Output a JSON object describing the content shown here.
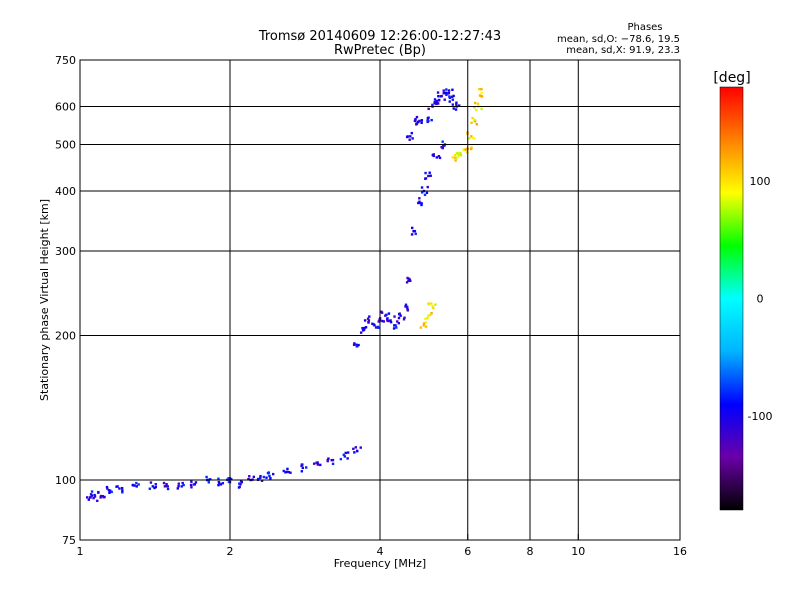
{
  "chart_data": {
    "type": "scatter",
    "title": "Tromsø 20140609 12:26:00-12:27:43",
    "subtitle": "RwPretec (Bp)",
    "xlabel": "Frequency [MHz]",
    "ylabel": "Stationary phase Virtual Height [km]",
    "x_scale": "log",
    "y_scale": "log",
    "xlim": [
      1,
      16
    ],
    "ylim": [
      75,
      750
    ],
    "x_ticks": [
      1,
      2,
      4,
      6,
      8,
      10,
      16
    ],
    "y_ticks": [
      75,
      100,
      200,
      300,
      400,
      500,
      600,
      750
    ],
    "grid": true,
    "stats": {
      "header": "Phases",
      "o_mode": "mean, sd,O: −78.6, 19.5",
      "x_mode": "mean, sd,X:  91.9, 23.3"
    },
    "colorbar": {
      "label": "[deg]",
      "range": [
        -180,
        180
      ],
      "ticks": [
        100,
        0,
        -100
      ],
      "colormap": "rainbow",
      "colors": [
        "#000000",
        "#6a00a8",
        "#0000ff",
        "#00b4ff",
        "#00ffff",
        "#00ff00",
        "#ffff00",
        "#ff8000",
        "#ff0000"
      ]
    },
    "series": [
      {
        "name": "trace-low",
        "phase": -100,
        "points": [
          [
            1.05,
            92
          ],
          [
            1.07,
            93
          ],
          [
            1.1,
            92
          ],
          [
            1.15,
            95
          ],
          [
            1.2,
            96
          ],
          [
            1.3,
            97
          ],
          [
            1.4,
            97
          ],
          [
            1.5,
            97
          ],
          [
            1.6,
            97
          ],
          [
            1.7,
            98
          ],
          [
            1.8,
            100
          ],
          [
            1.9,
            99
          ],
          [
            2.0,
            99
          ],
          [
            2.1,
            98
          ],
          [
            2.2,
            100
          ],
          [
            2.3,
            101
          ],
          [
            2.4,
            102
          ],
          [
            2.6,
            104
          ],
          [
            2.8,
            106
          ],
          [
            3.0,
            108
          ],
          [
            3.2,
            110
          ],
          [
            3.4,
            112
          ],
          [
            3.6,
            115
          ]
        ]
      },
      {
        "name": "trace-mid",
        "phase": -100,
        "points": [
          [
            3.6,
            190
          ],
          [
            3.7,
            205
          ],
          [
            3.8,
            215
          ],
          [
            3.9,
            210
          ],
          [
            4.0,
            215
          ],
          [
            4.1,
            220
          ],
          [
            4.2,
            215
          ],
          [
            4.3,
            210
          ],
          [
            4.4,
            220
          ],
          [
            4.5,
            230
          ],
          [
            4.6,
            260
          ],
          [
            4.7,
            330
          ],
          [
            4.8,
            380
          ],
          [
            4.9,
            400
          ],
          [
            5.0,
            430
          ],
          [
            5.2,
            470
          ],
          [
            5.4,
            500
          ]
        ]
      },
      {
        "name": "trace-high",
        "phase": -100,
        "points": [
          [
            4.6,
            520
          ],
          [
            4.7,
            560
          ],
          [
            4.8,
            560
          ],
          [
            5.0,
            560
          ],
          [
            5.1,
            600
          ],
          [
            5.2,
            610
          ],
          [
            5.3,
            630
          ],
          [
            5.4,
            640
          ],
          [
            5.5,
            640
          ],
          [
            5.6,
            620
          ],
          [
            5.7,
            600
          ]
        ]
      },
      {
        "name": "trace-x-mode",
        "phase": 100,
        "points": [
          [
            5.6,
            470
          ],
          [
            5.8,
            480
          ],
          [
            6.0,
            490
          ],
          [
            6.1,
            520
          ],
          [
            6.2,
            560
          ],
          [
            6.3,
            600
          ],
          [
            6.4,
            640
          ],
          [
            4.9,
            210
          ],
          [
            5.0,
            220
          ],
          [
            5.1,
            230
          ]
        ]
      }
    ]
  }
}
